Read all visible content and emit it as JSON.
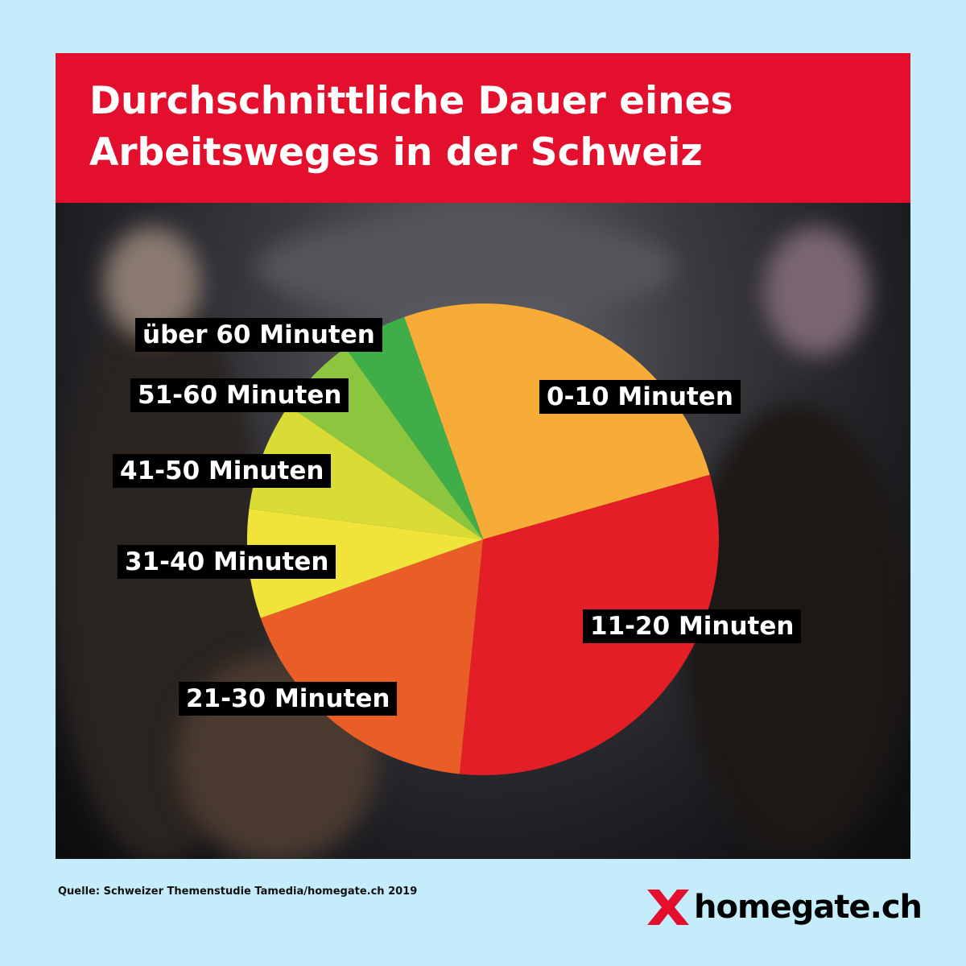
{
  "header": {
    "title": "Durchschnittliche Dauer eines Arbeitsweges in der Schweiz"
  },
  "chart_data": {
    "type": "pie",
    "title": "Durchschnittliche Dauer eines Arbeitsweges in der Schweiz",
    "categories": [
      "0-10 Minuten",
      "11-20 Minuten",
      "21-30 Minuten",
      "31-40 Minuten",
      "41-50 Minuten",
      "51-60 Minuten",
      "über 60 Minuten"
    ],
    "values": [
      26,
      31,
      18,
      7.5,
      7.5,
      5.5,
      4.5
    ],
    "unit": "%",
    "start_angle_deg": 340.5,
    "direction": "clockwise",
    "colors": [
      "#f7ac38",
      "#e31e26",
      "#e95d27",
      "#f0e43a",
      "#d8dc35",
      "#8cc63f",
      "#3fae49"
    ]
  },
  "footer": {
    "source": "Quelle: Schweizer Themenstudie Tamedia/homegate.ch 2019",
    "logo_text": "homegate.ch",
    "logo_color": "#e30f2d"
  }
}
